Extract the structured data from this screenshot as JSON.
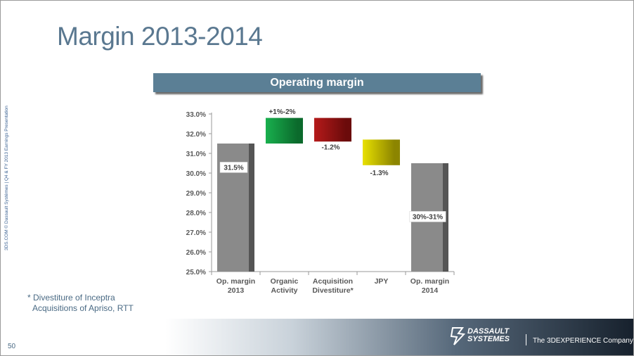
{
  "slide": {
    "title": "Margin 2013-2014",
    "side_note": "3DS.COM © Dassault Systèmes | Q4 & FY 2013 Earnings Presentation",
    "footnote_lines": [
      "* Divestiture of Inceptra",
      "Acquisitions of Apriso, RTT"
    ],
    "page_number": "50",
    "brand_line1": "DASSAULT",
    "brand_line2": "SYSTEMES",
    "tagline": "The 3DEXPERIENCE Company",
    "colors": {
      "title": "#5a7890",
      "banner": "#5b7f95",
      "text_blue": "#4a6a84"
    }
  },
  "chart_data": {
    "type": "bar",
    "subtype": "waterfall",
    "title": "Operating margin",
    "ylim": [
      25,
      33
    ],
    "y_tick_labels": [
      "33.0%",
      "32.0%",
      "31.0%",
      "30.0%",
      "29.0%",
      "28.0%",
      "27.0%",
      "26.0%",
      "25.0%"
    ],
    "y_tick_values": [
      33,
      32,
      31,
      30,
      29,
      28,
      27,
      26,
      25
    ],
    "categories": [
      {
        "line1": "Op. margin",
        "line2": "2013"
      },
      {
        "line1": "Organic",
        "line2": "Activity"
      },
      {
        "line1": "Acquisition",
        "line2": "Divestiture*"
      },
      {
        "line1": "JPY",
        "line2": ""
      },
      {
        "line1": "Op. margin",
        "line2": "2014"
      }
    ],
    "bars": [
      {
        "start": 25.0,
        "end": 31.5,
        "kind": "total",
        "color": "#8a8a8a",
        "shade": "#555555",
        "label": "31.5%",
        "label_value": 30.2,
        "label_style": "boxed"
      },
      {
        "start": 31.5,
        "end": 32.8,
        "kind": "increase",
        "color": "#19b04e",
        "shade": "#0b6a2c",
        "label": "+1%-2%",
        "label_value": 33.0,
        "label_style": "plain"
      },
      {
        "start": 32.8,
        "end": 31.6,
        "kind": "decrease",
        "color": "#b51a1a",
        "shade": "#6b0b0b",
        "label": "-1.2%",
        "label_value": 31.2,
        "label_style": "plain"
      },
      {
        "start": 31.7,
        "end": 30.4,
        "kind": "decrease",
        "color": "#e8e000",
        "shade": "#8c8500",
        "label": "-1.3%",
        "label_value": 29.9,
        "label_style": "plain"
      },
      {
        "start": 25.0,
        "end": 30.5,
        "kind": "total",
        "color": "#8a8a8a",
        "shade": "#555555",
        "label": "30%-31%",
        "label_value": 27.7,
        "label_style": "boxed"
      }
    ]
  }
}
